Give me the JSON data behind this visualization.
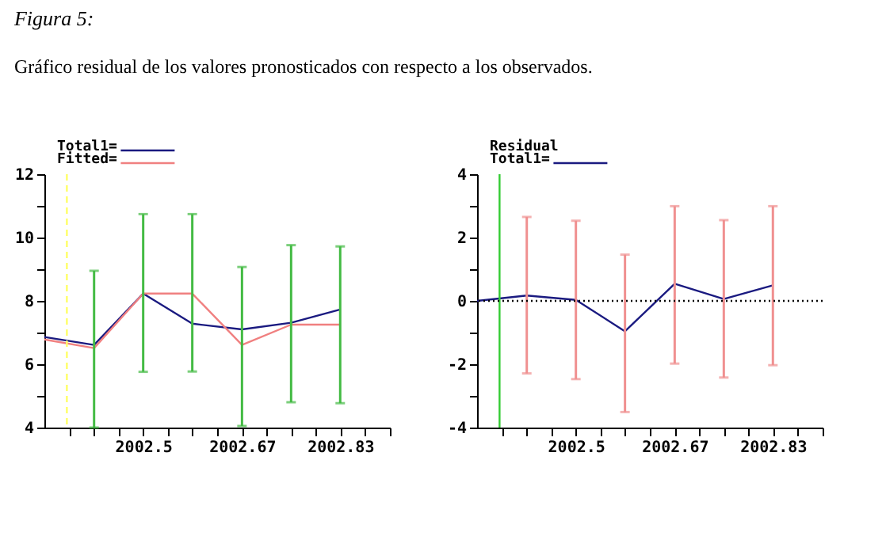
{
  "chart_data": [
    {
      "type": "line",
      "title": "Figura 5:",
      "subtitle": "Gráfico residual de los valores pronosticados con respecto a los observados.",
      "x": [
        2002.333,
        2002.417,
        2002.5,
        2002.583,
        2002.667,
        2002.75,
        2002.833
      ],
      "series": [
        {
          "name": "Total1=",
          "color": "#1a1a80",
          "values": [
            6.86,
            6.61,
            8.23,
            7.28,
            7.1,
            7.31,
            7.73
          ]
        },
        {
          "name": "Fitted=",
          "color": "#f08080",
          "values": [
            6.78,
            6.51,
            8.23,
            8.23,
            6.61,
            7.25,
            7.25
          ],
          "errors": [
            null,
            [
              4.0,
              8.95
            ],
            [
              5.76,
              10.74
            ],
            [
              5.77,
              10.74
            ],
            [
              4.05,
              9.07
            ],
            [
              4.8,
              9.76
            ],
            [
              4.77,
              9.72
            ]
          ]
        }
      ],
      "xlim": [
        2002.333,
        2002.917
      ],
      "xticks": [
        {
          "value": 2002.375,
          "label": null
        },
        {
          "value": 2002.417,
          "label": null
        },
        {
          "value": 2002.458,
          "label": null
        },
        {
          "value": 2002.5,
          "label": "2002.5"
        },
        {
          "value": 2002.542,
          "label": null
        },
        {
          "value": 2002.583,
          "label": null
        },
        {
          "value": 2002.625,
          "label": null
        },
        {
          "value": 2002.667,
          "label": "2002.67"
        },
        {
          "value": 2002.708,
          "label": null
        },
        {
          "value": 2002.75,
          "label": null
        },
        {
          "value": 2002.792,
          "label": null
        },
        {
          "value": 2002.833,
          "label": "2002.83"
        },
        {
          "value": 2002.875,
          "label": null
        },
        {
          "value": 2002.917,
          "label": null
        }
      ],
      "ylim": [
        4,
        12
      ],
      "yticks": [
        4,
        {
          "value": 5,
          "label": null
        },
        6,
        {
          "value": 7,
          "label": null
        },
        8,
        {
          "value": 9,
          "label": null
        },
        10,
        {
          "value": 11,
          "label": null
        },
        12
      ],
      "ref_lines": [
        {
          "axis": "x",
          "value": 2002.371,
          "color": "#ffff66",
          "line_style": "dashed"
        }
      ],
      "grid": false,
      "legend": "top left"
    },
    {
      "type": "line",
      "legend_title": "Residual",
      "x": [
        2002.333,
        2002.417,
        2002.5,
        2002.583,
        2002.667,
        2002.75,
        2002.833
      ],
      "series": [
        {
          "name": "Total1=",
          "color": "#1a1a80",
          "values": [
            0,
            0.17,
            0.03,
            -0.96,
            0.54,
            0.06,
            0.49
          ],
          "errors": [
            null,
            [
              -2.29,
              2.65
            ],
            [
              -2.47,
              2.53
            ],
            [
              -3.51,
              1.46
            ],
            [
              -1.98,
              2.99
            ],
            [
              -2.42,
              2.55
            ],
            [
              -2.03,
              2.99
            ]
          ]
        }
      ],
      "xlim": [
        2002.333,
        2002.917
      ],
      "xticks": [
        {
          "value": 2002.375,
          "label": null
        },
        {
          "value": 2002.417,
          "label": null
        },
        {
          "value": 2002.458,
          "label": null
        },
        {
          "value": 2002.5,
          "label": "2002.5"
        },
        {
          "value": 2002.542,
          "label": null
        },
        {
          "value": 2002.583,
          "label": null
        },
        {
          "value": 2002.625,
          "label": null
        },
        {
          "value": 2002.667,
          "label": "2002.67"
        },
        {
          "value": 2002.708,
          "label": null
        },
        {
          "value": 2002.75,
          "label": null
        },
        {
          "value": 2002.792,
          "label": null
        },
        {
          "value": 2002.833,
          "label": "2002.83"
        },
        {
          "value": 2002.875,
          "label": null
        },
        {
          "value": 2002.917,
          "label": null
        }
      ],
      "ylim": [
        -4,
        4
      ],
      "yticks": [
        -4,
        {
          "value": -3,
          "label": null
        },
        -2,
        {
          "value": -1,
          "label": null
        },
        0,
        {
          "value": 1,
          "label": null
        },
        2,
        {
          "value": 3,
          "label": null
        },
        4
      ],
      "ref_lines": [
        {
          "axis": "x",
          "value": 2002.371,
          "color": "#33cc33",
          "line_style": "solid"
        },
        {
          "axis": "y",
          "value": 0,
          "color": "#000000",
          "line_style": "dotted"
        }
      ],
      "grid": false,
      "legend": "top left"
    }
  ]
}
